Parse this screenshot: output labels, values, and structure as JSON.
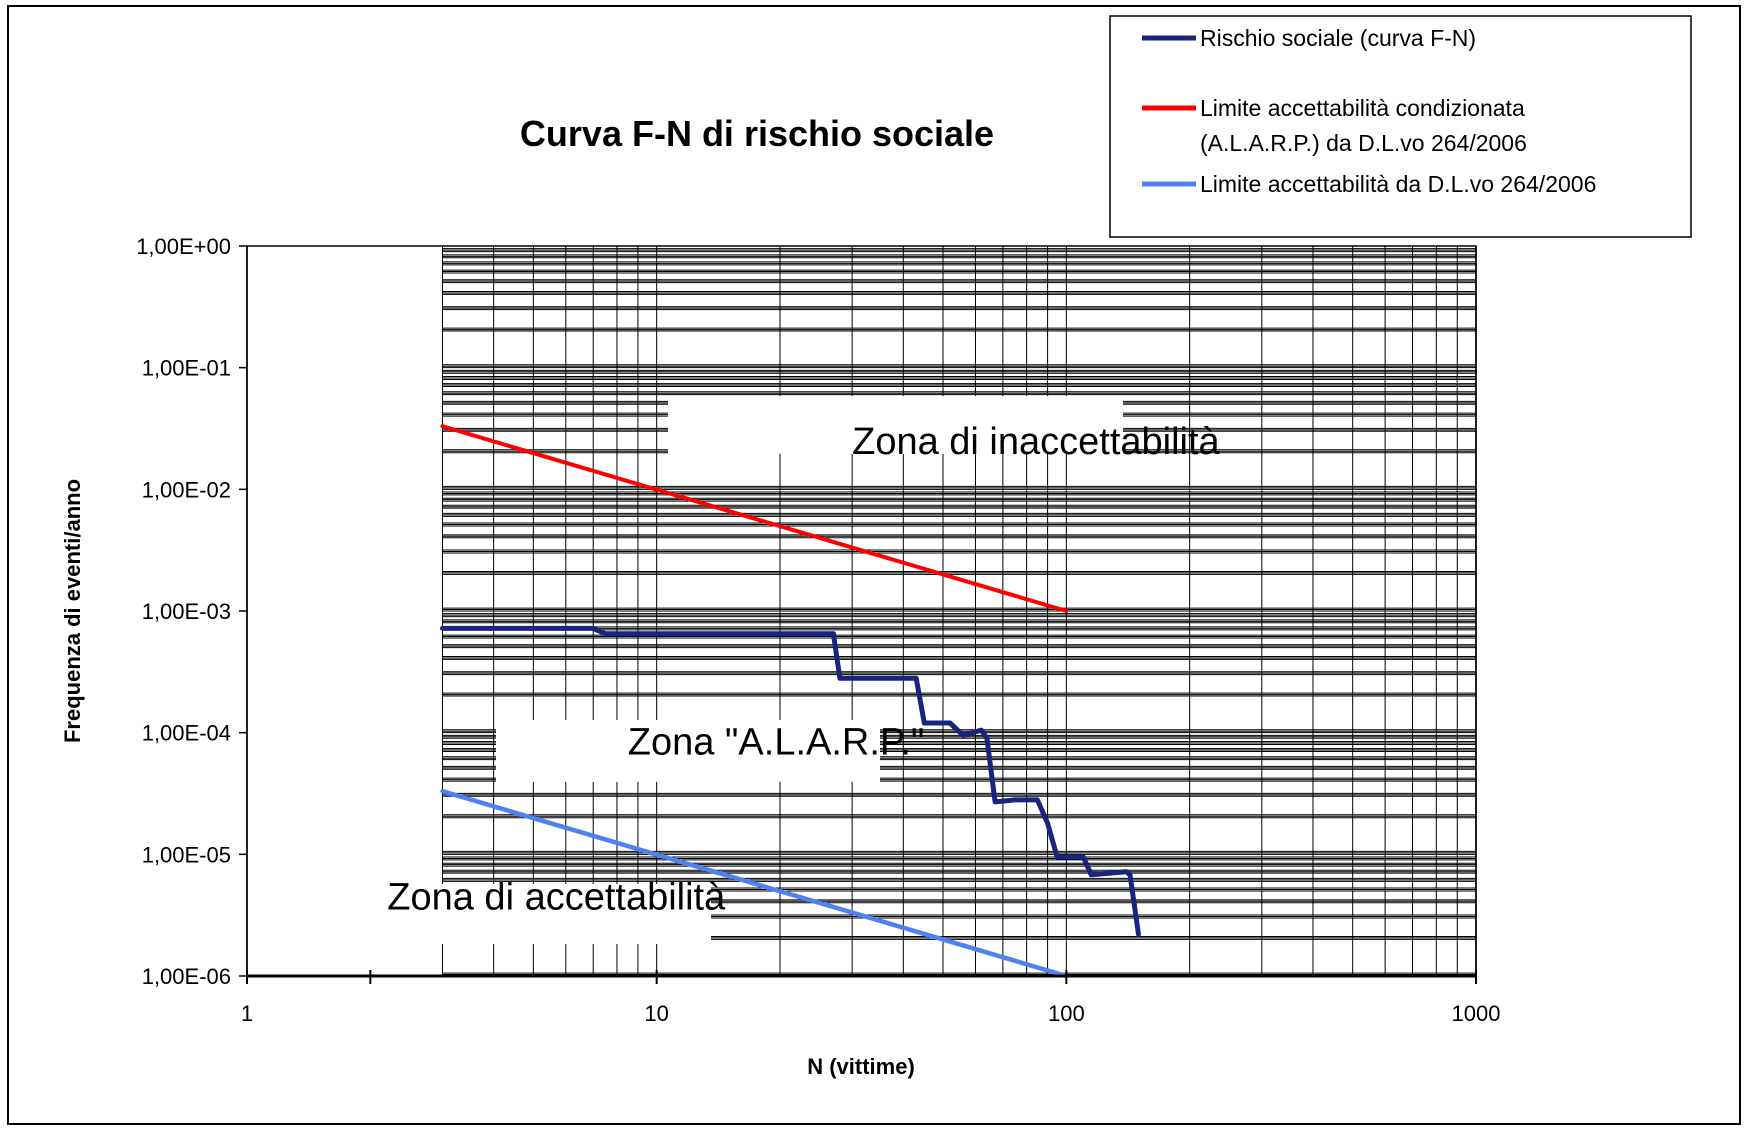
{
  "chart_data": {
    "type": "line",
    "title": "Curva F-N di rischio sociale",
    "xlabel": "N (vittime)",
    "ylabel": "Frequenza di eventi/anno",
    "x_scale": "log",
    "y_scale": "log",
    "xlim": [
      1,
      1000
    ],
    "ylim": [
      1e-06,
      1
    ],
    "grid": true,
    "legend_position": "top-right",
    "x_ticks": [
      {
        "value": 1,
        "label": "1"
      },
      {
        "value": 10,
        "label": "10"
      },
      {
        "value": 100,
        "label": "100"
      },
      {
        "value": 1000,
        "label": "1000"
      }
    ],
    "y_ticks": [
      {
        "value": 1,
        "label": "1,00E+00"
      },
      {
        "value": 0.1,
        "label": "1,00E-01"
      },
      {
        "value": 0.01,
        "label": "1,00E-02"
      },
      {
        "value": 0.001,
        "label": "1,00E-03"
      },
      {
        "value": 0.0001,
        "label": "1,00E-04"
      },
      {
        "value": 1e-05,
        "label": "1,00E-05"
      },
      {
        "value": 1e-06,
        "label": "1,00E-06"
      }
    ],
    "series": [
      {
        "name": "Rischio sociale (curva F-N)",
        "color": "#1a237e",
        "points": [
          [
            3,
            0.00072
          ],
          [
            7,
            0.00072
          ],
          [
            7.5,
            0.00065
          ],
          [
            27,
            0.00065
          ],
          [
            28,
            0.00028
          ],
          [
            43,
            0.00028
          ],
          [
            45,
            0.00012
          ],
          [
            52,
            0.00012
          ],
          [
            56,
            9.5e-05
          ],
          [
            62,
            0.000105
          ],
          [
            64,
            9e-05
          ],
          [
            67,
            2.7e-05
          ],
          [
            75,
            2.8e-05
          ],
          [
            85,
            2.8e-05
          ],
          [
            90,
            1.8e-05
          ],
          [
            95,
            9.5e-06
          ],
          [
            110,
            9.5e-06
          ],
          [
            115,
            6.8e-06
          ],
          [
            140,
            7.2e-06
          ],
          [
            143,
            6.8e-06
          ],
          [
            150,
            2.2e-06
          ]
        ]
      },
      {
        "name": "Limite accettabilità condizionata (A.L.A.R.P.) da D.L.vo 264/2006",
        "color": "#ff0000",
        "points": [
          [
            3,
            0.033
          ],
          [
            100,
            0.001
          ]
        ]
      },
      {
        "name": "Limite accettabilità da D.L.vo 264/2006",
        "color": "#4f81f0",
        "points": [
          [
            3,
            3.3e-05
          ],
          [
            100,
            1e-06
          ]
        ]
      }
    ],
    "annotations": [
      {
        "text": "Zona di inaccettabilità",
        "x": 30,
        "y": 0.025
      },
      {
        "text": "Zona \"A.L.A.R.P.\"",
        "x": 8.5,
        "y": 8.5e-05
      },
      {
        "text": "Zona di accettabilità",
        "x": 2.2,
        "y": 4.5e-06
      }
    ]
  }
}
